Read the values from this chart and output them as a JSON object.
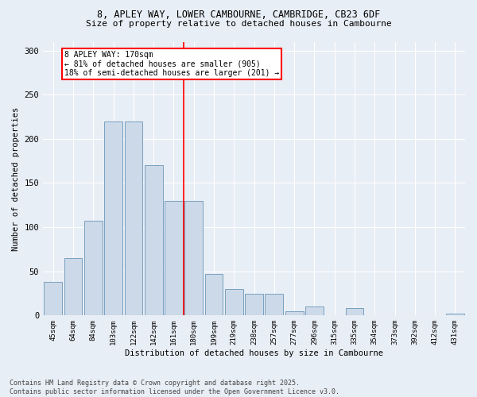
{
  "title_line1": "8, APLEY WAY, LOWER CAMBOURNE, CAMBRIDGE, CB23 6DF",
  "title_line2": "Size of property relative to detached houses in Cambourne",
  "xlabel": "Distribution of detached houses by size in Cambourne",
  "ylabel": "Number of detached properties",
  "categories": [
    "45sqm",
    "64sqm",
    "84sqm",
    "103sqm",
    "122sqm",
    "142sqm",
    "161sqm",
    "180sqm",
    "199sqm",
    "219sqm",
    "238sqm",
    "257sqm",
    "277sqm",
    "296sqm",
    "315sqm",
    "335sqm",
    "354sqm",
    "373sqm",
    "392sqm",
    "412sqm",
    "431sqm"
  ],
  "values": [
    38,
    65,
    107,
    220,
    220,
    170,
    130,
    130,
    47,
    30,
    25,
    25,
    5,
    10,
    0,
    8,
    0,
    0,
    0,
    0,
    2
  ],
  "bar_color": "#ccd9e8",
  "bar_edge_color": "#7aa0c0",
  "vline_pos": 6.5,
  "annotation_text": "8 APLEY WAY: 170sqm\n← 81% of detached houses are smaller (905)\n18% of semi-detached houses are larger (201) →",
  "annotation_box_color": "white",
  "annotation_box_edge_color": "red",
  "vline_color": "red",
  "ylim": [
    0,
    310
  ],
  "yticks": [
    0,
    50,
    100,
    150,
    200,
    250,
    300
  ],
  "footer_line1": "Contains HM Land Registry data © Crown copyright and database right 2025.",
  "footer_line2": "Contains public sector information licensed under the Open Government Licence v3.0.",
  "background_color": "#e8eef5",
  "plot_bg_color": "#e8eef5"
}
